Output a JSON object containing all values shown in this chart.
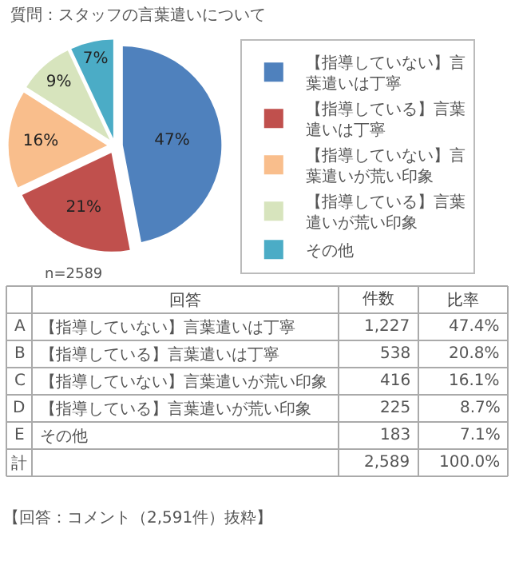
{
  "chart_data": [
    {
      "type": "pie",
      "title": "質問：スタッフの言葉遣いについて",
      "categories": [
        "【指導していない】言葉遣いは丁寧",
        "【指導している】言葉遣いは丁寧",
        "【指導していない】言葉遣いが荒い印象",
        "【指導している】言葉遣いが荒い印象",
        "その他"
      ],
      "values": [
        47,
        21,
        16,
        9,
        7
      ],
      "value_labels": [
        "47%",
        "21%",
        "16%",
        "9%",
        "7%"
      ],
      "colors": [
        "#4f81bd",
        "#c0504d",
        "#f9be8c",
        "#d7e4bd",
        "#4bacc6"
      ],
      "legend": "right",
      "annotations": [
        "n=2589"
      ]
    },
    {
      "type": "other",
      "categories": [
        null,
        "回答",
        "件数",
        "比率"
      ],
      "cell_labels": [
        [
          "A",
          "【指導していない】言葉遣いは丁寧",
          "1,227",
          "47.4%"
        ],
        [
          "B",
          "【指導している】言葉遣いは丁寧",
          "538",
          "20.8%"
        ],
        [
          "C",
          "【指導していない】言葉遣いが荒い印象",
          "416",
          "16.1%"
        ],
        [
          "D",
          "【指導している】言葉遣いが荒い印象",
          "225",
          "8.7%"
        ],
        [
          "E",
          "その他",
          "183",
          "7.1%"
        ],
        [
          "計",
          null,
          "2,589",
          "100.0%"
        ]
      ],
      "annotations": [
        "【回答：コメント（2,591件）抜粋】"
      ]
    }
  ]
}
